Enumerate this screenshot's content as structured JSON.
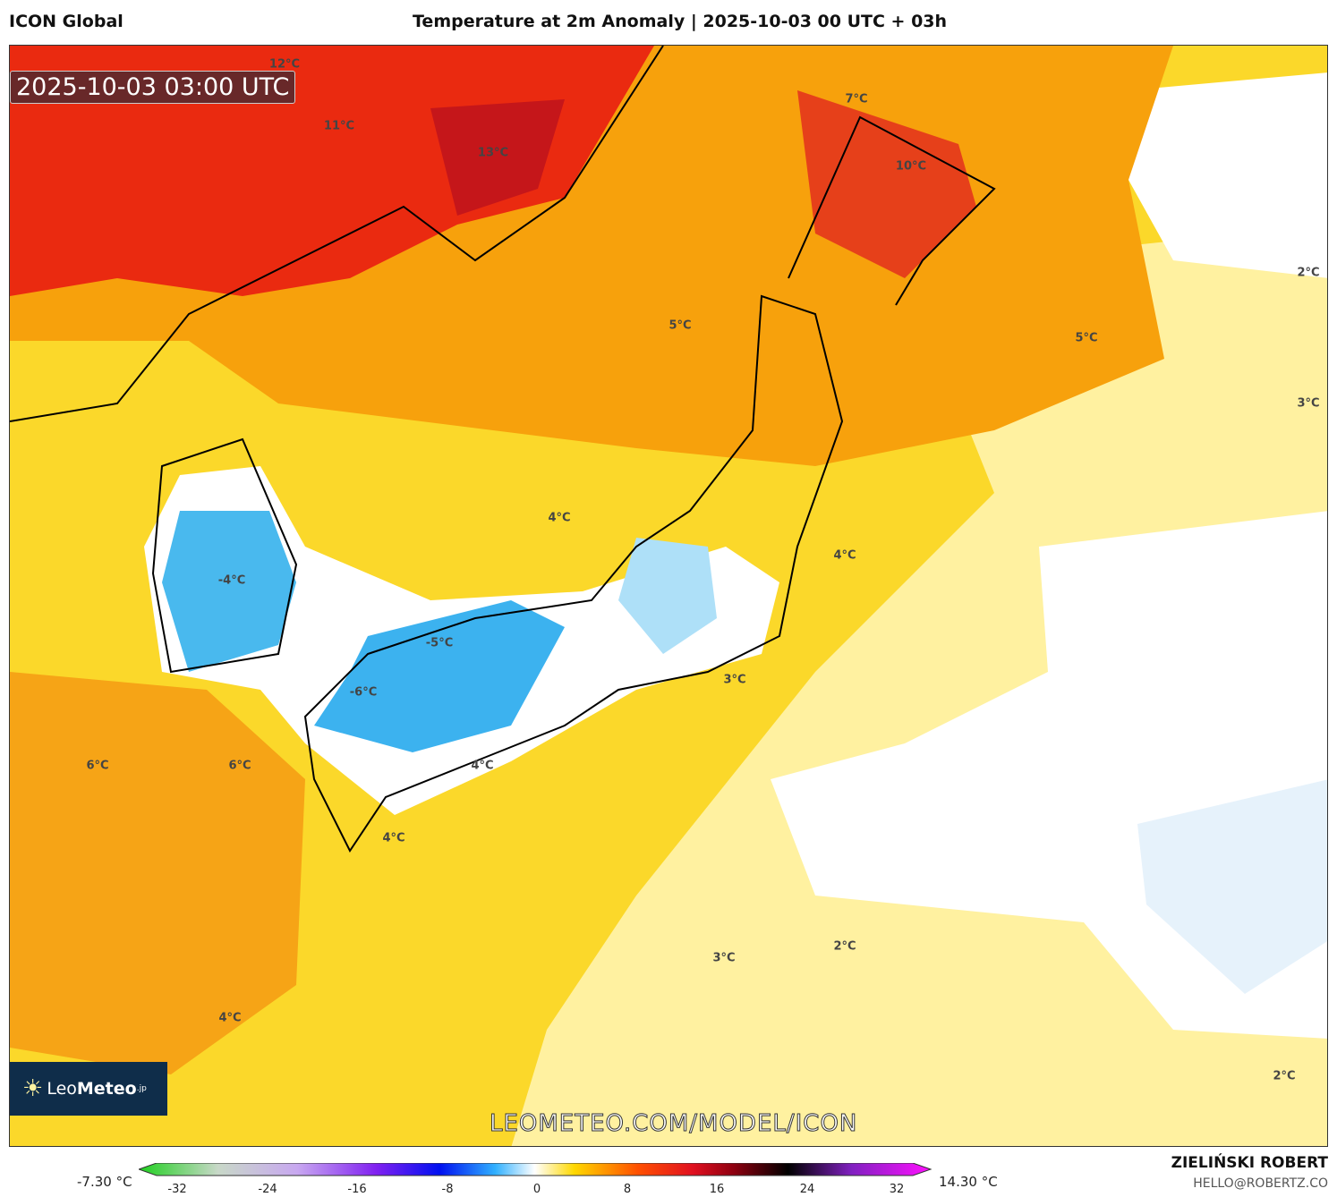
{
  "header": {
    "model": "ICON Global",
    "title": "Temperature at 2m Anomaly | 2025-10-03 00 UTC + 03h"
  },
  "map": {
    "timestamp": "2025-10-03 03:00 UTC",
    "watermark": "LEOMETEO.COM/MODEL/ICON",
    "logo": {
      "light": "Leo",
      "bold": "Meteo",
      "suffix": ".jp"
    },
    "contour_labels": [
      "12°C",
      "11°C",
      "13°C",
      "7°C",
      "10°C",
      "5°C",
      "2°C",
      "5°C",
      "3°C",
      "4°C",
      "4°C",
      "-4°C",
      "-5°C",
      "-6°C",
      "3°C",
      "6°C",
      "6°C",
      "4°C",
      "4°C",
      "3°C",
      "2°C",
      "4°C",
      "2°C"
    ]
  },
  "colorbar": {
    "min_label": "-7.30 °C",
    "max_label": "14.30 °C",
    "ticks": [
      "-32",
      "-24",
      "-16",
      "-8",
      "0",
      "8",
      "16",
      "24",
      "32"
    ],
    "range": [
      -32,
      32
    ]
  },
  "credits": {
    "author": "ZIELIŃSKI ROBERT",
    "email": "HELLO@ROBERTZ.CO"
  }
}
